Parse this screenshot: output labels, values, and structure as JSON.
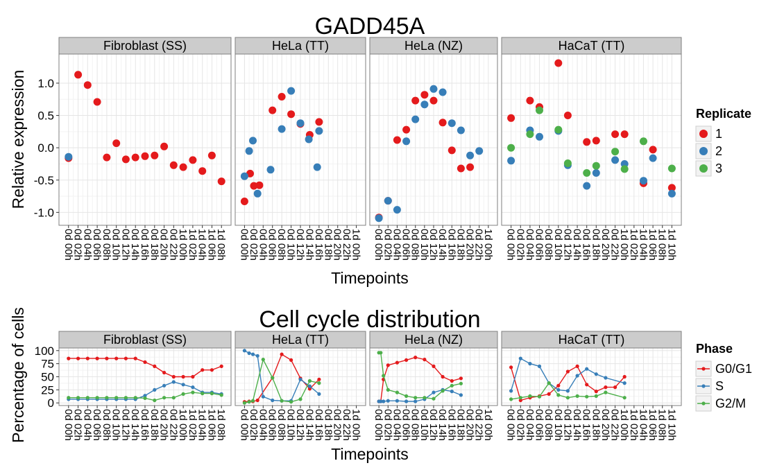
{
  "colors": {
    "red": "#E41A1C",
    "blue": "#377EB8",
    "green": "#4DAF4A",
    "strip": "#CCCCCC",
    "grid_major": "#E5E5E5",
    "grid_minor": "#F3F3F3",
    "border": "#7F7F7F"
  },
  "chart_data": [
    {
      "type": "scatter",
      "title": "GADD45A",
      "xlabel": "Timepoints",
      "ylabel": "Relative expression",
      "ylim": [
        -1.2,
        1.45
      ],
      "yticks": [
        1.0,
        0.5,
        0.0,
        -0.5,
        -1.0
      ],
      "ytick_labels": [
        "1.0",
        "0.5",
        "0.0",
        "-0.5",
        "-1.0"
      ],
      "grid": true,
      "legend": {
        "title": "Replicate",
        "position": "right",
        "entries": [
          "1",
          "2",
          "3"
        ],
        "colors": [
          "#E41A1C",
          "#377EB8",
          "#4DAF4A"
        ]
      },
      "panels": [
        {
          "name": "Fibroblast (SS)",
          "x": [
            "0d 00h",
            "0d 02h",
            "0d 04h",
            "0d 06h",
            "0d 08h",
            "0d 10h",
            "0d 12h",
            "0d 14h",
            "0d 16h",
            "0d 18h",
            "0d 20h",
            "0d 22h",
            "1d 00h",
            "1d 02h",
            "1d 04h",
            "1d 06h",
            "1d 08h"
          ],
          "series": [
            {
              "values": [
                -0.16,
                1.13,
                0.97,
                0.71,
                -0.15,
                0.07,
                -0.18,
                -0.15,
                -0.13,
                -0.12,
                0.02,
                -0.27,
                -0.3,
                -0.19,
                -0.36,
                -0.12,
                -0.52
              ]
            },
            {
              "values": [
                -0.14,
                null,
                null,
                null,
                null,
                null,
                null,
                null,
                null,
                null,
                null,
                null,
                null,
                null,
                null,
                null,
                null
              ]
            }
          ]
        },
        {
          "name": "HeLa (TT)",
          "x": [
            "0d 00h",
            "0d 02h",
            "0d 04h",
            "0d 06h",
            "0d 08h",
            "0d 10h",
            "0d 12h",
            "0d 14h",
            "0d 16h",
            "0d 18h",
            "0d 20h",
            "0d 22h",
            "1d 00h"
          ],
          "series": [
            {
              "values": [
                -0.83,
                -0.4,
                -0.59,
                -0.58,
                0.58,
                0.79,
                0.52,
                0.37,
                0.2,
                0.4
              ]
            },
            {
              "values": [
                -0.44,
                -0.05,
                0.11,
                -0.71,
                -0.34,
                0.29,
                0.88,
                0.38,
                0.13,
                -0.3,
                0.26
              ]
            }
          ],
          "positions": {
            "r": [
              0,
              0.6,
              1.0,
              1.6,
              3.0,
              4.0,
              5.0,
              6.0,
              7.0,
              8.0
            ],
            "b": [
              0,
              0.5,
              0.9,
              1.4,
              2.8,
              4.0,
              5.0,
              6.0,
              6.9,
              7.8,
              8.0
            ]
          }
        },
        {
          "name": "HeLa (NZ)",
          "x": [
            "0d 00h",
            "0d 02h",
            "0d 04h",
            "0d 06h",
            "0d 08h",
            "0d 10h",
            "0d 12h",
            "0d 14h",
            "0d 16h",
            "0d 18h",
            "0d 20h",
            "0d 22h",
            "1d 00h"
          ],
          "series": [
            {
              "values": [
                -1.08,
                -0.82,
                0.12,
                0.28,
                0.73,
                0.82,
                0.73,
                0.39,
                -0.04,
                -0.32,
                -0.3
              ]
            },
            {
              "values": [
                -1.09,
                -0.82,
                -0.96,
                0.1,
                0.44,
                0.67,
                0.91,
                0.86,
                0.38,
                0.27,
                -0.12,
                -0.05
              ]
            }
          ]
        },
        {
          "name": "HaCaT (TT)",
          "x": [
            "0d 00h",
            "0d 02h",
            "0d 04h",
            "0d 06h",
            "0d 08h",
            "0d 10h",
            "0d 12h",
            "0d 14h",
            "0d 16h",
            "0d 18h",
            "0d 20h",
            "0d 22h",
            "1d 00h",
            "1d 02h",
            "1d 04h",
            "1d 06h",
            "1d 08h",
            "1d 10h"
          ],
          "series": [
            {
              "values": [
                0.46,
                null,
                0.73,
                0.63,
                null,
                1.31,
                0.5,
                null,
                0.09,
                0.11,
                null,
                0.21,
                0.21,
                null,
                -0.55,
                -0.03,
                null,
                -0.62
              ]
            },
            {
              "values": [
                -0.2,
                null,
                0.27,
                0.17,
                null,
                0.26,
                -0.27,
                null,
                -0.59,
                -0.39,
                null,
                -0.19,
                -0.25,
                null,
                -0.51,
                -0.16,
                null,
                -0.71
              ]
            },
            {
              "values": [
                0.0,
                null,
                0.21,
                0.58,
                null,
                0.28,
                -0.24,
                null,
                -0.39,
                -0.28,
                null,
                -0.06,
                -0.33,
                null,
                0.1,
                null,
                null,
                -0.32
              ]
            }
          ]
        }
      ]
    },
    {
      "type": "line",
      "title": "Cell cycle distribution",
      "xlabel": "Timepoints",
      "ylabel": "Percentage of cells",
      "ylim": [
        -5,
        105
      ],
      "yticks": [
        100,
        75,
        50,
        25,
        0
      ],
      "ytick_labels": [
        "100",
        "75",
        "50",
        "25",
        "0"
      ],
      "grid": true,
      "legend": {
        "title": "Phase",
        "position": "right",
        "entries": [
          "G0/G1",
          "S",
          "G2/M"
        ],
        "colors": [
          "#E41A1C",
          "#377EB8",
          "#4DAF4A"
        ]
      },
      "panels": [
        {
          "name": "Fibroblast (SS)",
          "x": [
            "0d 00h",
            "0d 02h",
            "0d 04h",
            "0d 06h",
            "0d 08h",
            "0d 10h",
            "0d 12h",
            "0d 14h",
            "0d 16h",
            "0d 18h",
            "0d 20h",
            "0d 22h",
            "1d 00h",
            "1d 02h",
            "1d 04h",
            "1d 06h",
            "1d 08h"
          ],
          "series": [
            {
              "values": [
                85,
                85,
                85,
                85,
                85,
                85,
                85,
                85,
                78,
                70,
                58,
                50,
                50,
                50,
                63,
                63,
                70
              ]
            },
            {
              "values": [
                7,
                7,
                7,
                7,
                7,
                7,
                7,
                7,
                14,
                25,
                33,
                40,
                35,
                30,
                20,
                20,
                17
              ]
            },
            {
              "values": [
                10,
                10,
                10,
                10,
                10,
                10,
                10,
                10,
                9,
                5,
                10,
                10,
                17,
                20,
                18,
                18,
                15
              ]
            }
          ]
        },
        {
          "name": "HeLa (TT)",
          "x": [
            "0d 00h",
            "0d 02h",
            "0d 04h",
            "0d 06h",
            "0d 08h",
            "0d 10h",
            "0d 12h",
            "0d 14h",
            "0d 16h",
            "0d 18h",
            "0d 20h",
            "0d 22h",
            "1d 00h"
          ],
          "series": [
            {
              "values": [
                2,
                3,
                3,
                5,
                48,
                93,
                82,
                47,
                27,
                45
              ],
              "pos": [
                0,
                0.5,
                0.9,
                1.4,
                3.0,
                4.0,
                5.0,
                6.0,
                7.0,
                8.0
              ]
            },
            {
              "values": [
                100,
                95,
                93,
                90,
                12,
                5,
                4,
                4,
                45,
                32,
                17
              ],
              "pos": [
                0,
                0.5,
                0.9,
                1.4,
                2.0,
                3.0,
                4.0,
                5.0,
                6.0,
                7.0,
                8.0
              ]
            },
            {
              "values": [
                0,
                2,
                4,
                83,
                48,
                4,
                2,
                7,
                42,
                38
              ],
              "pos": [
                0,
                0.5,
                0.9,
                2.0,
                3.0,
                4.0,
                5.0,
                6.0,
                7.0,
                8.0
              ]
            }
          ]
        },
        {
          "name": "HeLa (NZ)",
          "x": [
            "0d 00h",
            "0d 02h",
            "0d 04h",
            "0d 06h",
            "0d 08h",
            "0d 10h",
            "0d 12h",
            "0d 14h",
            "0d 16h",
            "0d 18h",
            "0d 20h",
            "0d 22h",
            "1d 00h"
          ],
          "series": [
            {
              "values": [
                3,
                3,
                45,
                72,
                77,
                82,
                87,
                83,
                70,
                50,
                42,
                47
              ],
              "pos": [
                0,
                0.2,
                0.5,
                1.0,
                2.0,
                3.0,
                4.0,
                5.0,
                6.0,
                7.0,
                8.0,
                9.0
              ]
            },
            {
              "values": [
                3,
                3,
                3,
                4,
                4,
                3,
                3,
                7,
                20,
                25,
                22,
                15
              ],
              "pos": [
                0,
                0.2,
                0.5,
                1.0,
                2.0,
                3.0,
                4.0,
                5.0,
                6.0,
                7.0,
                8.0,
                9.0
              ]
            },
            {
              "values": [
                96,
                96,
                52,
                25,
                20,
                13,
                10,
                10,
                8,
                23,
                33,
                37
              ],
              "pos": [
                0,
                0.2,
                0.5,
                1.0,
                2.0,
                3.0,
                4.0,
                5.0,
                6.0,
                7.0,
                8.0,
                9.0
              ]
            }
          ]
        },
        {
          "name": "HaCaT (TT)",
          "x": [
            "0d 00h",
            "0d 02h",
            "0d 04h",
            "0d 06h",
            "0d 08h",
            "0d 10h",
            "0d 12h",
            "0d 14h",
            "0d 16h",
            "0d 18h",
            "0d 20h",
            "0d 22h",
            "1d 00h",
            "1d 02h",
            "1d 04h",
            "1d 06h",
            "1d 08h",
            "1d 10h"
          ],
          "series": [
            {
              "values": [
                68,
                5,
                10,
                13,
                17,
                33,
                60,
                70,
                35,
                22,
                30,
                30,
                50
              ],
              "pos": [
                0,
                1.0,
                2.0,
                3.0,
                4.0,
                5.0,
                6.0,
                7.0,
                8.0,
                9.0,
                10.0,
                11.0,
                12.0
              ]
            },
            {
              "values": [
                23,
                85,
                75,
                70,
                38,
                25,
                23,
                52,
                65,
                55,
                48,
                38
              ],
              "pos": [
                0,
                1.0,
                2.0,
                3.0,
                4.0,
                5.0,
                6.0,
                7.0,
                8.0,
                9.0,
                10.0,
                12.0
              ]
            },
            {
              "values": [
                7,
                10,
                13,
                12,
                38,
                15,
                10,
                13,
                12,
                13,
                20,
                10
              ],
              "pos": [
                0,
                1.0,
                2.0,
                3.0,
                4.0,
                5.0,
                6.0,
                7.0,
                8.0,
                9.0,
                10.0,
                12.0
              ]
            }
          ]
        }
      ]
    }
  ]
}
